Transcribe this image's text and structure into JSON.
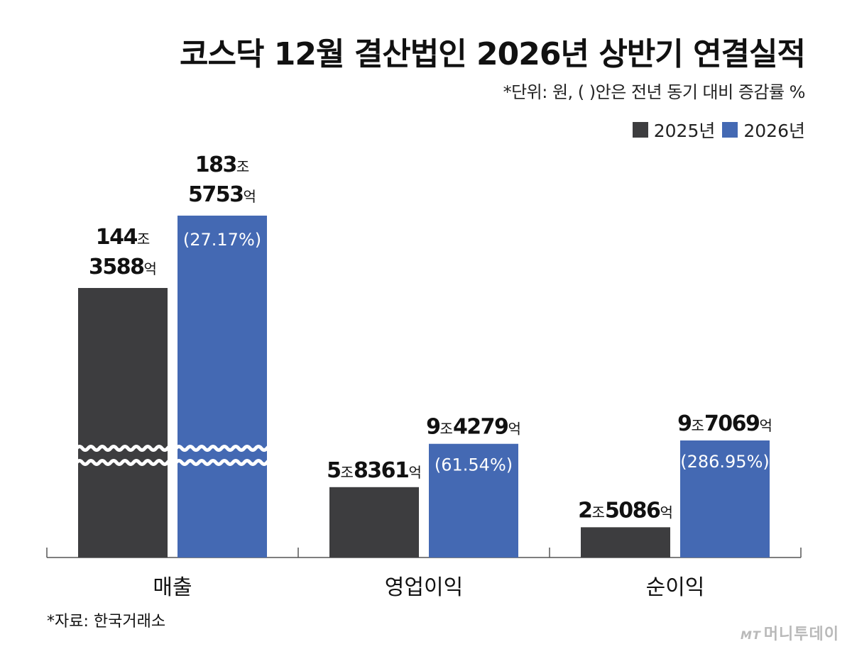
{
  "chart_data": {
    "type": "bar",
    "title": "코스닥 12월 결산법인 2026년 상반기 연결실적",
    "subtitle": "*단위: 원, (  )안은 전년 동기 대비 증감률 %",
    "categories": [
      "매출",
      "영업이익",
      "순이익"
    ],
    "series": [
      {
        "name": "2025년",
        "color": "#3d3d3f",
        "values": [
          1443588,
          58361,
          25086
        ],
        "labels": [
          [
            {
              "num": "144",
              "unit": "조"
            },
            {
              "num": "3588",
              "unit": "억"
            }
          ],
          [
            {
              "num": "5",
              "unit": "조"
            },
            {
              "num": "8361",
              "unit": "억"
            }
          ],
          [
            {
              "num": "2",
              "unit": "조"
            },
            {
              "num": "5086",
              "unit": "억"
            }
          ]
        ]
      },
      {
        "name": "2026년",
        "color": "#4469b3",
        "values": [
          1835753,
          94279,
          97069
        ],
        "labels": [
          [
            {
              "num": "183",
              "unit": "조"
            },
            {
              "num": "5753",
              "unit": "억"
            }
          ],
          [
            {
              "num": "9",
              "unit": "조"
            },
            {
              "num": "4279",
              "unit": "억"
            }
          ],
          [
            {
              "num": "9",
              "unit": "조"
            },
            {
              "num": "7069",
              "unit": "억"
            }
          ]
        ],
        "changes": [
          "(27.17%)",
          "(61.54%)",
          "(286.95%)"
        ]
      }
    ],
    "value_unit": "억원",
    "axis_break": "매출",
    "legend_position": "top-right",
    "grid": false
  },
  "source": "*자료: 한국거래소",
  "brand": {
    "mark": "MT",
    "name": "머니투데이"
  }
}
